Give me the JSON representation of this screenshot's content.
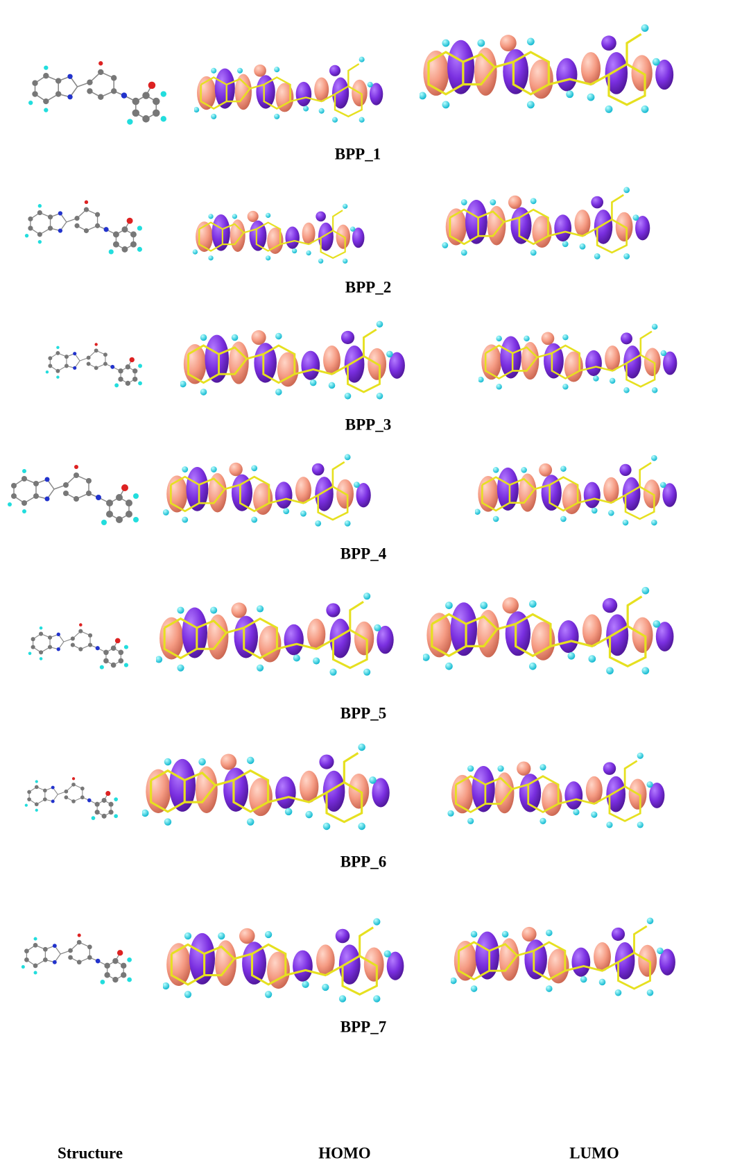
{
  "rows": [
    {
      "label": "BPP_1"
    },
    {
      "label": "BPP_2"
    },
    {
      "label": "BPP_3"
    },
    {
      "label": "BPP_4"
    },
    {
      "label": "BPP_5"
    },
    {
      "label": "BPP_6"
    },
    {
      "label": "BPP_7"
    }
  ],
  "columns": [
    "Structure",
    "HOMO",
    "LUMO"
  ]
}
